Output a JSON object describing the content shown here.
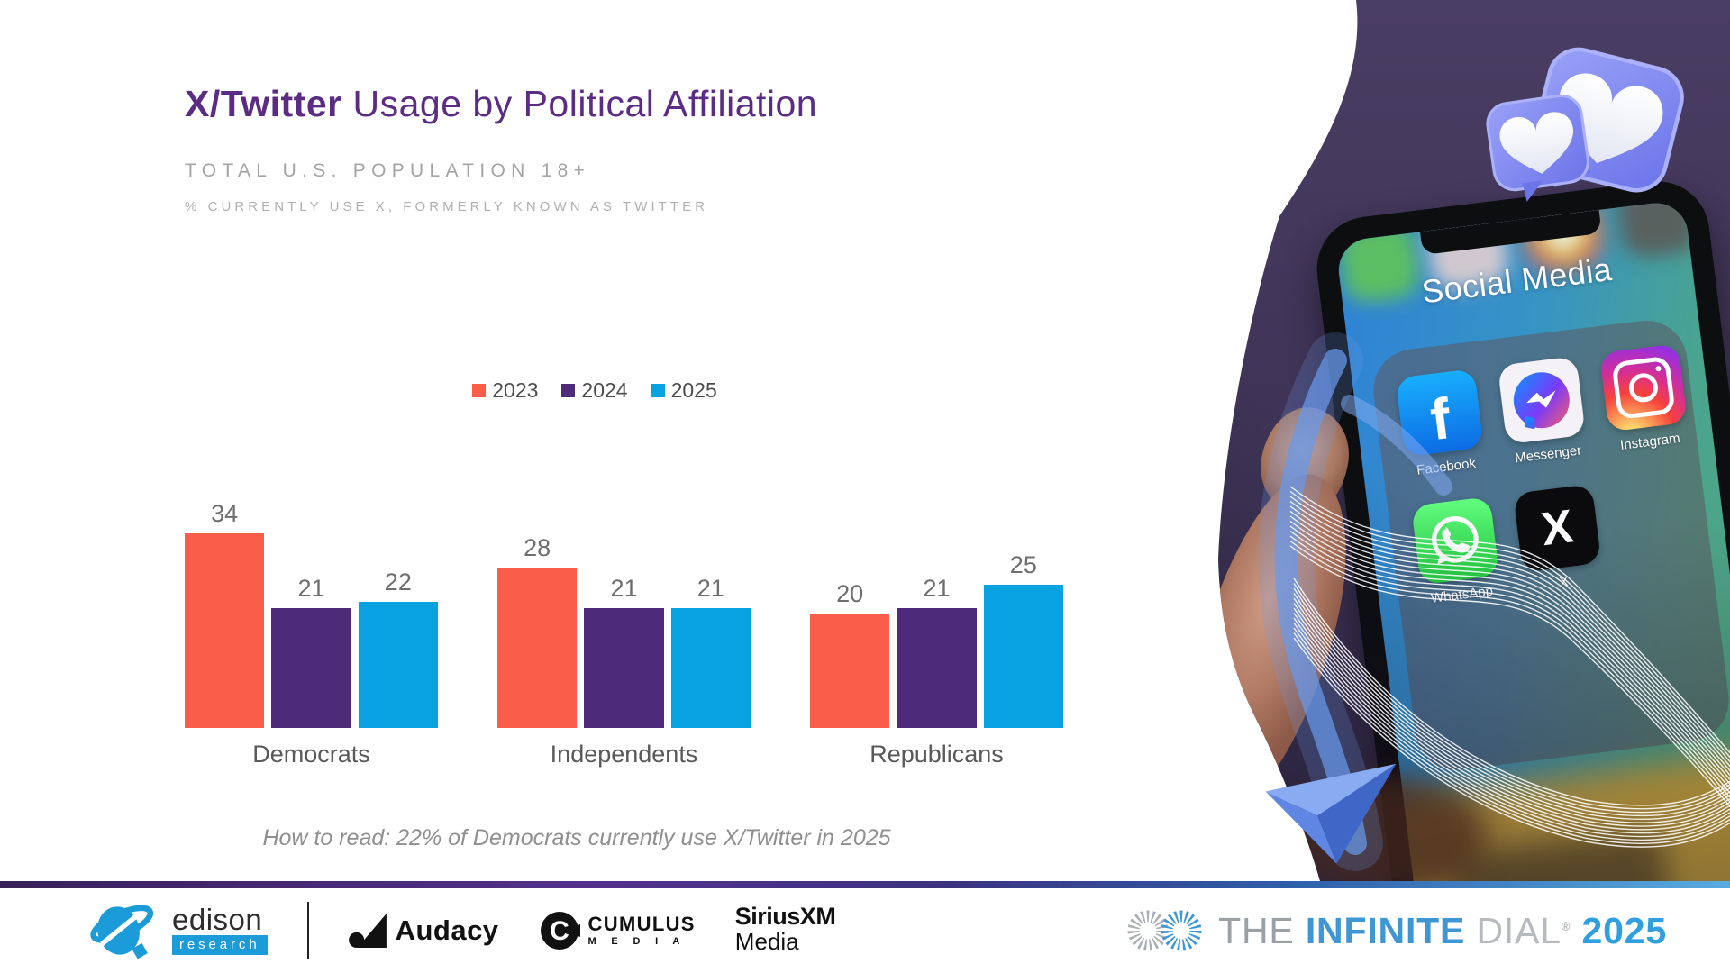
{
  "slide": {
    "title": {
      "bold": "X/Twitter",
      "rest": " Usage by Political Affiliation"
    },
    "subtitle": "TOTAL U.S. POPULATION 18+",
    "measure_note": "% CURRENTLY USE X, FORMERLY KNOWN AS TWITTER",
    "how_to_read": "How to read: 22% of Democrats currently use X/Twitter in 2025"
  },
  "chart_data": {
    "type": "bar",
    "title": "X/Twitter Usage by Political Affiliation",
    "subtitle": "Total U.S. Population 18+ — % currently use X, formerly known as Twitter",
    "categories": [
      "Democrats",
      "Independents",
      "Republicans"
    ],
    "series": [
      {
        "name": "2023",
        "color": "#fb5d4b",
        "values": [
          34,
          28,
          20
        ]
      },
      {
        "name": "2024",
        "color": "#4e2a7a",
        "values": [
          21,
          21,
          21
        ]
      },
      {
        "name": "2025",
        "color": "#09a2e1",
        "values": [
          22,
          21,
          25
        ]
      }
    ],
    "ylim": [
      0,
      41
    ],
    "grid": false,
    "legend_position": "top-center",
    "value_labels": true
  },
  "photo": {
    "folder_label": "Social Media",
    "apps": [
      {
        "label": "Facebook",
        "icon": "facebook"
      },
      {
        "label": "Messenger",
        "icon": "messenger"
      },
      {
        "label": "Instagram",
        "icon": "instagram"
      },
      {
        "label": "WhatsApp",
        "icon": "whatsapp"
      },
      {
        "label": "X",
        "icon": "x"
      }
    ]
  },
  "footer": {
    "edison": {
      "name": "edison",
      "sub": "research"
    },
    "audacy": "Audacy",
    "cumulus": {
      "line1": "CUMULUS",
      "line2": "M E D I A"
    },
    "siriusxm": {
      "line1": "SiriusXM",
      "line2": "Media"
    },
    "brand": {
      "the": "THE",
      "infinite": "INFINITE",
      "dial": "DIAL",
      "reg": "®",
      "year": "2025"
    }
  }
}
